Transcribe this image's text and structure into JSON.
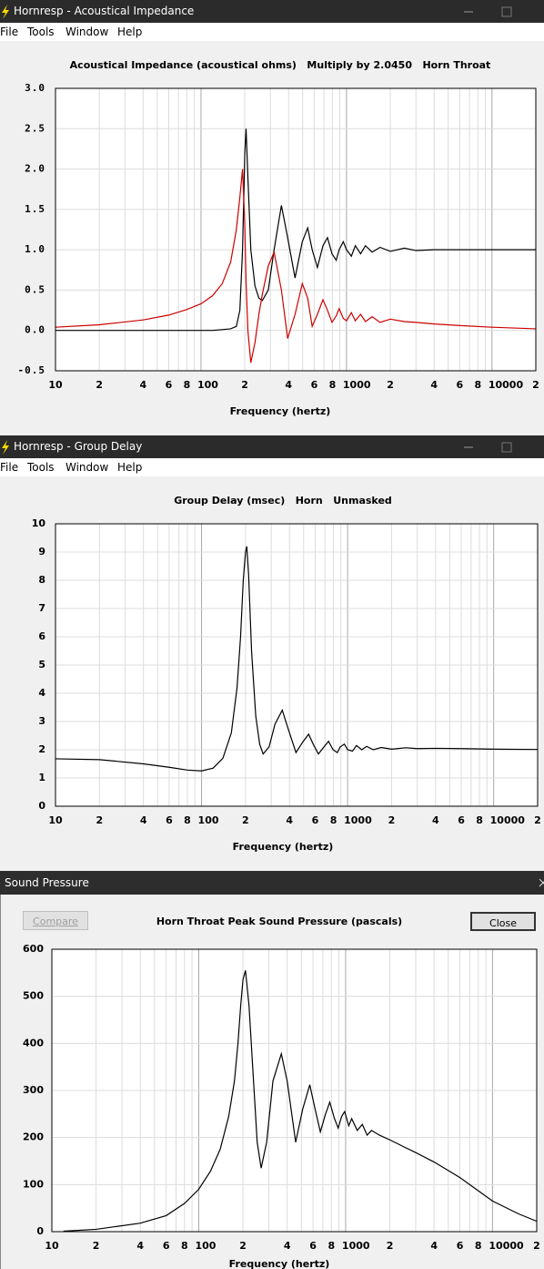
{
  "windows": [
    {
      "title": "Hornresp - Acoustical Impedance",
      "menu": [
        "File",
        "Tools",
        "Window",
        "Help"
      ]
    },
    {
      "title": "Hornresp - Group Delay",
      "menu": [
        "File",
        "Tools",
        "Window",
        "Help"
      ]
    },
    {
      "title": "Sound Pressure",
      "buttons": [
        "Compare",
        "Close"
      ]
    }
  ],
  "chart_data": [
    {
      "type": "line",
      "title": "Acoustical Impedance (acoustical ohms)   Multiply by 2.0450   Horn Throat",
      "x_label": "Frequency (hertz)",
      "xscale": "log",
      "grid": true,
      "xlim": [
        10,
        20000
      ],
      "ylim": [
        -0.5,
        3
      ],
      "xticks": [
        10,
        {
          "value": 20,
          "label": "2"
        },
        {
          "value": 40,
          "label": "4"
        },
        {
          "value": 60,
          "label": "6"
        },
        {
          "value": 80,
          "label": "8"
        },
        100,
        {
          "value": 200,
          "label": "2"
        },
        {
          "value": 400,
          "label": "4"
        },
        {
          "value": 600,
          "label": "6"
        },
        {
          "value": 800,
          "label": "8"
        },
        1000,
        {
          "value": 2000,
          "label": "2"
        },
        {
          "value": 4000,
          "label": "4"
        },
        {
          "value": 6000,
          "label": "6"
        },
        {
          "value": 8000,
          "label": "8"
        },
        10000,
        {
          "value": 20000,
          "label": "2"
        }
      ],
      "xminorticks": [
        30,
        50,
        70,
        90,
        300,
        500,
        700,
        900,
        3000,
        5000,
        7000,
        9000
      ],
      "yticks": [
        {
          "value": 3,
          "label": "3.0"
        },
        2.5,
        {
          "value": 2,
          "label": "2.0"
        },
        1.5,
        {
          "value": 1,
          "label": "1.0"
        },
        0.5,
        {
          "value": 0,
          "label": "0.0"
        },
        -0.5
      ],
      "x": [
        10,
        20,
        40,
        60,
        80,
        100,
        120,
        140,
        160,
        175,
        185,
        193,
        200,
        204,
        210,
        220,
        235,
        250,
        264,
        290,
        318,
        357,
        394,
        443,
        497,
        541,
        581,
        631,
        689,
        740,
        795,
        850,
        890,
        950,
        1000,
        1080,
        1150,
        1250,
        1350,
        1500,
        1700,
        2000,
        2500,
        3000,
        4000,
        6000,
        10000,
        20000
      ],
      "series": [
        {
          "color": "#000000",
          "values": [
            0,
            0,
            0,
            0,
            0,
            0,
            0,
            0.01,
            0.02,
            0.05,
            0.25,
            1.0,
            2.2,
            2.5,
            1.9,
            1.0,
            0.55,
            0.4,
            0.37,
            0.5,
            1.0,
            1.55,
            1.15,
            0.65,
            1.1,
            1.27,
            1.0,
            0.78,
            1.05,
            1.15,
            0.95,
            0.87,
            1.0,
            1.1,
            1.0,
            0.92,
            1.05,
            0.95,
            1.05,
            0.97,
            1.03,
            0.98,
            1.02,
            0.99,
            1.0,
            1.0,
            1.0,
            1.0
          ]
        },
        {
          "color": "#cc0000",
          "values": [
            0.04,
            0.07,
            0.13,
            0.19,
            0.26,
            0.33,
            0.43,
            0.58,
            0.85,
            1.25,
            1.65,
            2.0,
            1.3,
            0.6,
            0.0,
            -0.4,
            -0.15,
            0.2,
            0.45,
            0.8,
            0.97,
            0.5,
            -0.1,
            0.2,
            0.58,
            0.4,
            0.05,
            0.2,
            0.38,
            0.25,
            0.1,
            0.18,
            0.27,
            0.15,
            0.12,
            0.22,
            0.12,
            0.2,
            0.11,
            0.17,
            0.1,
            0.14,
            0.11,
            0.1,
            0.08,
            0.06,
            0.04,
            0.02
          ]
        }
      ]
    },
    {
      "type": "line",
      "title": "Group Delay (msec)   Horn   Unmasked",
      "x_label": "Frequency (hertz)",
      "xscale": "log",
      "grid": true,
      "xlim": [
        10,
        20000
      ],
      "ylim": [
        0,
        10
      ],
      "xticks": [
        10,
        {
          "value": 20,
          "label": "2"
        },
        {
          "value": 40,
          "label": "4"
        },
        {
          "value": 60,
          "label": "6"
        },
        {
          "value": 80,
          "label": "8"
        },
        100,
        {
          "value": 200,
          "label": "2"
        },
        {
          "value": 400,
          "label": "4"
        },
        {
          "value": 600,
          "label": "6"
        },
        {
          "value": 800,
          "label": "8"
        },
        1000,
        {
          "value": 2000,
          "label": "2"
        },
        {
          "value": 4000,
          "label": "4"
        },
        {
          "value": 6000,
          "label": "6"
        },
        {
          "value": 8000,
          "label": "8"
        },
        10000,
        {
          "value": 20000,
          "label": "2"
        }
      ],
      "xminorticks": [
        30,
        50,
        70,
        90,
        300,
        500,
        700,
        900,
        3000,
        5000,
        7000,
        9000
      ],
      "yticks": [
        0,
        1,
        2,
        3,
        4,
        5,
        6,
        7,
        8,
        9,
        10
      ],
      "x": [
        10,
        20,
        40,
        60,
        80,
        100,
        120,
        140,
        160,
        175,
        185,
        193,
        200,
        204,
        210,
        220,
        235,
        250,
        264,
        290,
        318,
        357,
        394,
        443,
        497,
        541,
        581,
        631,
        689,
        740,
        795,
        850,
        890,
        950,
        1000,
        1080,
        1150,
        1250,
        1350,
        1500,
        1700,
        2000,
        2500,
        3000,
        4000,
        6000,
        10000,
        20000
      ],
      "series": [
        {
          "color": "#000000",
          "values": [
            1.68,
            1.65,
            1.5,
            1.38,
            1.28,
            1.25,
            1.35,
            1.7,
            2.6,
            4.2,
            6.0,
            8.0,
            9.0,
            9.2,
            8.2,
            5.5,
            3.2,
            2.2,
            1.85,
            2.1,
            2.9,
            3.4,
            2.7,
            1.9,
            2.3,
            2.55,
            2.2,
            1.85,
            2.1,
            2.3,
            2.0,
            1.9,
            2.1,
            2.2,
            2.0,
            1.95,
            2.15,
            2.0,
            2.12,
            2.0,
            2.08,
            2.02,
            2.07,
            2.04,
            2.05,
            2.04,
            2.02,
            2.01
          ]
        }
      ]
    },
    {
      "type": "line",
      "title": "Horn Throat Peak Sound Pressure (pascals)",
      "x_label": "Frequency (hertz)",
      "xscale": "log",
      "grid": true,
      "xlim": [
        10,
        20000
      ],
      "ylim": [
        0,
        600
      ],
      "xticks": [
        10,
        {
          "value": 20,
          "label": "2"
        },
        {
          "value": 40,
          "label": "4"
        },
        {
          "value": 60,
          "label": "6"
        },
        {
          "value": 80,
          "label": "8"
        },
        100,
        {
          "value": 200,
          "label": "2"
        },
        {
          "value": 400,
          "label": "4"
        },
        {
          "value": 600,
          "label": "6"
        },
        {
          "value": 800,
          "label": "8"
        },
        1000,
        {
          "value": 2000,
          "label": "2"
        },
        {
          "value": 4000,
          "label": "4"
        },
        {
          "value": 6000,
          "label": "6"
        },
        {
          "value": 8000,
          "label": "8"
        },
        10000,
        {
          "value": 20000,
          "label": "2"
        }
      ],
      "xminorticks": [
        30,
        50,
        70,
        90,
        300,
        500,
        700,
        900,
        3000,
        5000,
        7000,
        9000
      ],
      "yticks": [
        0,
        100,
        200,
        300,
        400,
        500,
        600
      ],
      "x": [
        12,
        20,
        40,
        60,
        80,
        100,
        120,
        140,
        160,
        175,
        185,
        193,
        200,
        208,
        220,
        235,
        250,
        266,
        290,
        320,
        365,
        400,
        457,
        510,
        570,
        620,
        673,
        730,
        780,
        840,
        890,
        940,
        985,
        1050,
        1100,
        1200,
        1300,
        1400,
        1500,
        1700,
        2000,
        2500,
        3000,
        4000,
        6000,
        10000,
        15000,
        20000
      ],
      "series": [
        {
          "color": "#000000",
          "values": [
            1,
            5,
            18,
            34,
            60,
            90,
            128,
            175,
            245,
            320,
            400,
            480,
            535,
            555,
            480,
            330,
            190,
            135,
            190,
            320,
            378,
            320,
            190,
            260,
            312,
            260,
            212,
            250,
            275,
            240,
            220,
            245,
            255,
            225,
            240,
            215,
            228,
            205,
            215,
            205,
            195,
            180,
            168,
            148,
            115,
            65,
            38,
            22
          ]
        }
      ]
    }
  ]
}
